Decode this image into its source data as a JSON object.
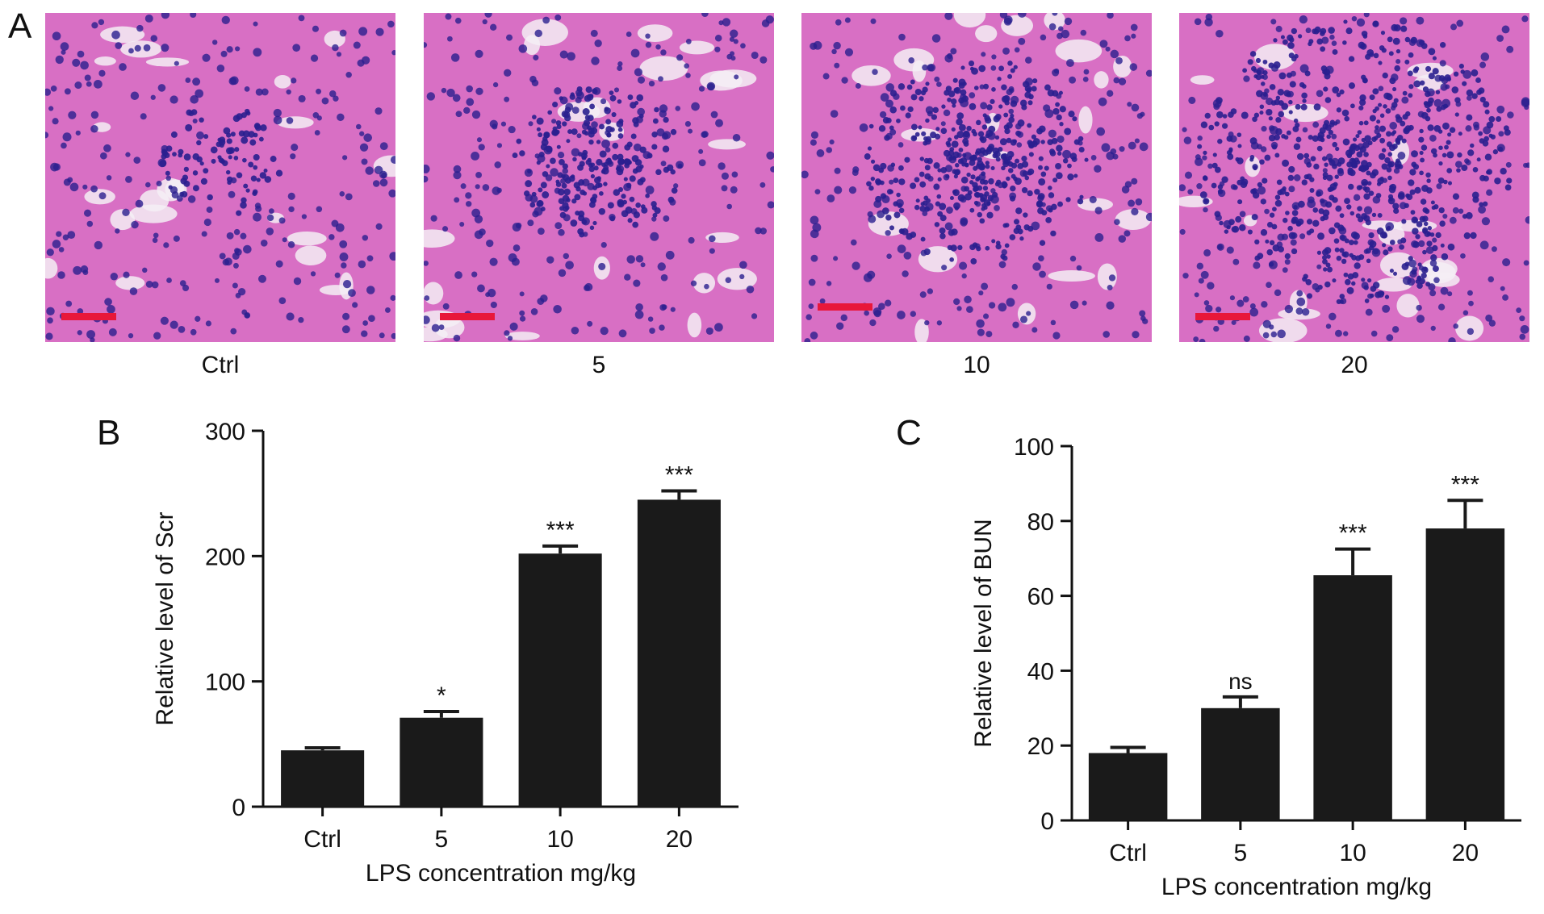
{
  "panel_a": {
    "letter": "A",
    "images": [
      {
        "label": "Ctrl",
        "infiltration": 0.1
      },
      {
        "label": "5",
        "infiltration": 0.25
      },
      {
        "label": "10",
        "infiltration": 0.45
      },
      {
        "label": "20",
        "infiltration": 0.75
      }
    ],
    "colors": {
      "tissue": "#d86fc4",
      "nuclei": "#2a1f8f",
      "lumen": "#f4eef5",
      "scale_bar": "#e8173a"
    }
  },
  "chart_data": [
    {
      "type": "bar",
      "panel_letter": "B",
      "categories": [
        "Ctrl",
        "5",
        "10",
        "20"
      ],
      "values": [
        45,
        71,
        202,
        245
      ],
      "errors": [
        2,
        5,
        6,
        7
      ],
      "significance": [
        "",
        "*",
        "***",
        "***"
      ],
      "xlabel": "LPS concentration mg/kg",
      "ylabel": "Relative level of Scr",
      "ylim": [
        0,
        300
      ],
      "yticks": [
        0,
        100,
        200,
        300
      ],
      "bar_color": "#1a1a1a"
    },
    {
      "type": "bar",
      "panel_letter": "C",
      "categories": [
        "Ctrl",
        "5",
        "10",
        "20"
      ],
      "values": [
        18,
        30,
        65.5,
        78
      ],
      "errors": [
        1.5,
        3,
        7,
        7.5
      ],
      "significance": [
        "",
        "ns",
        "***",
        "***"
      ],
      "xlabel": "LPS concentration mg/kg",
      "ylabel": "Relative level of BUN",
      "ylim": [
        0,
        100
      ],
      "yticks": [
        0,
        20,
        40,
        60,
        80,
        100
      ],
      "bar_color": "#1a1a1a"
    }
  ]
}
